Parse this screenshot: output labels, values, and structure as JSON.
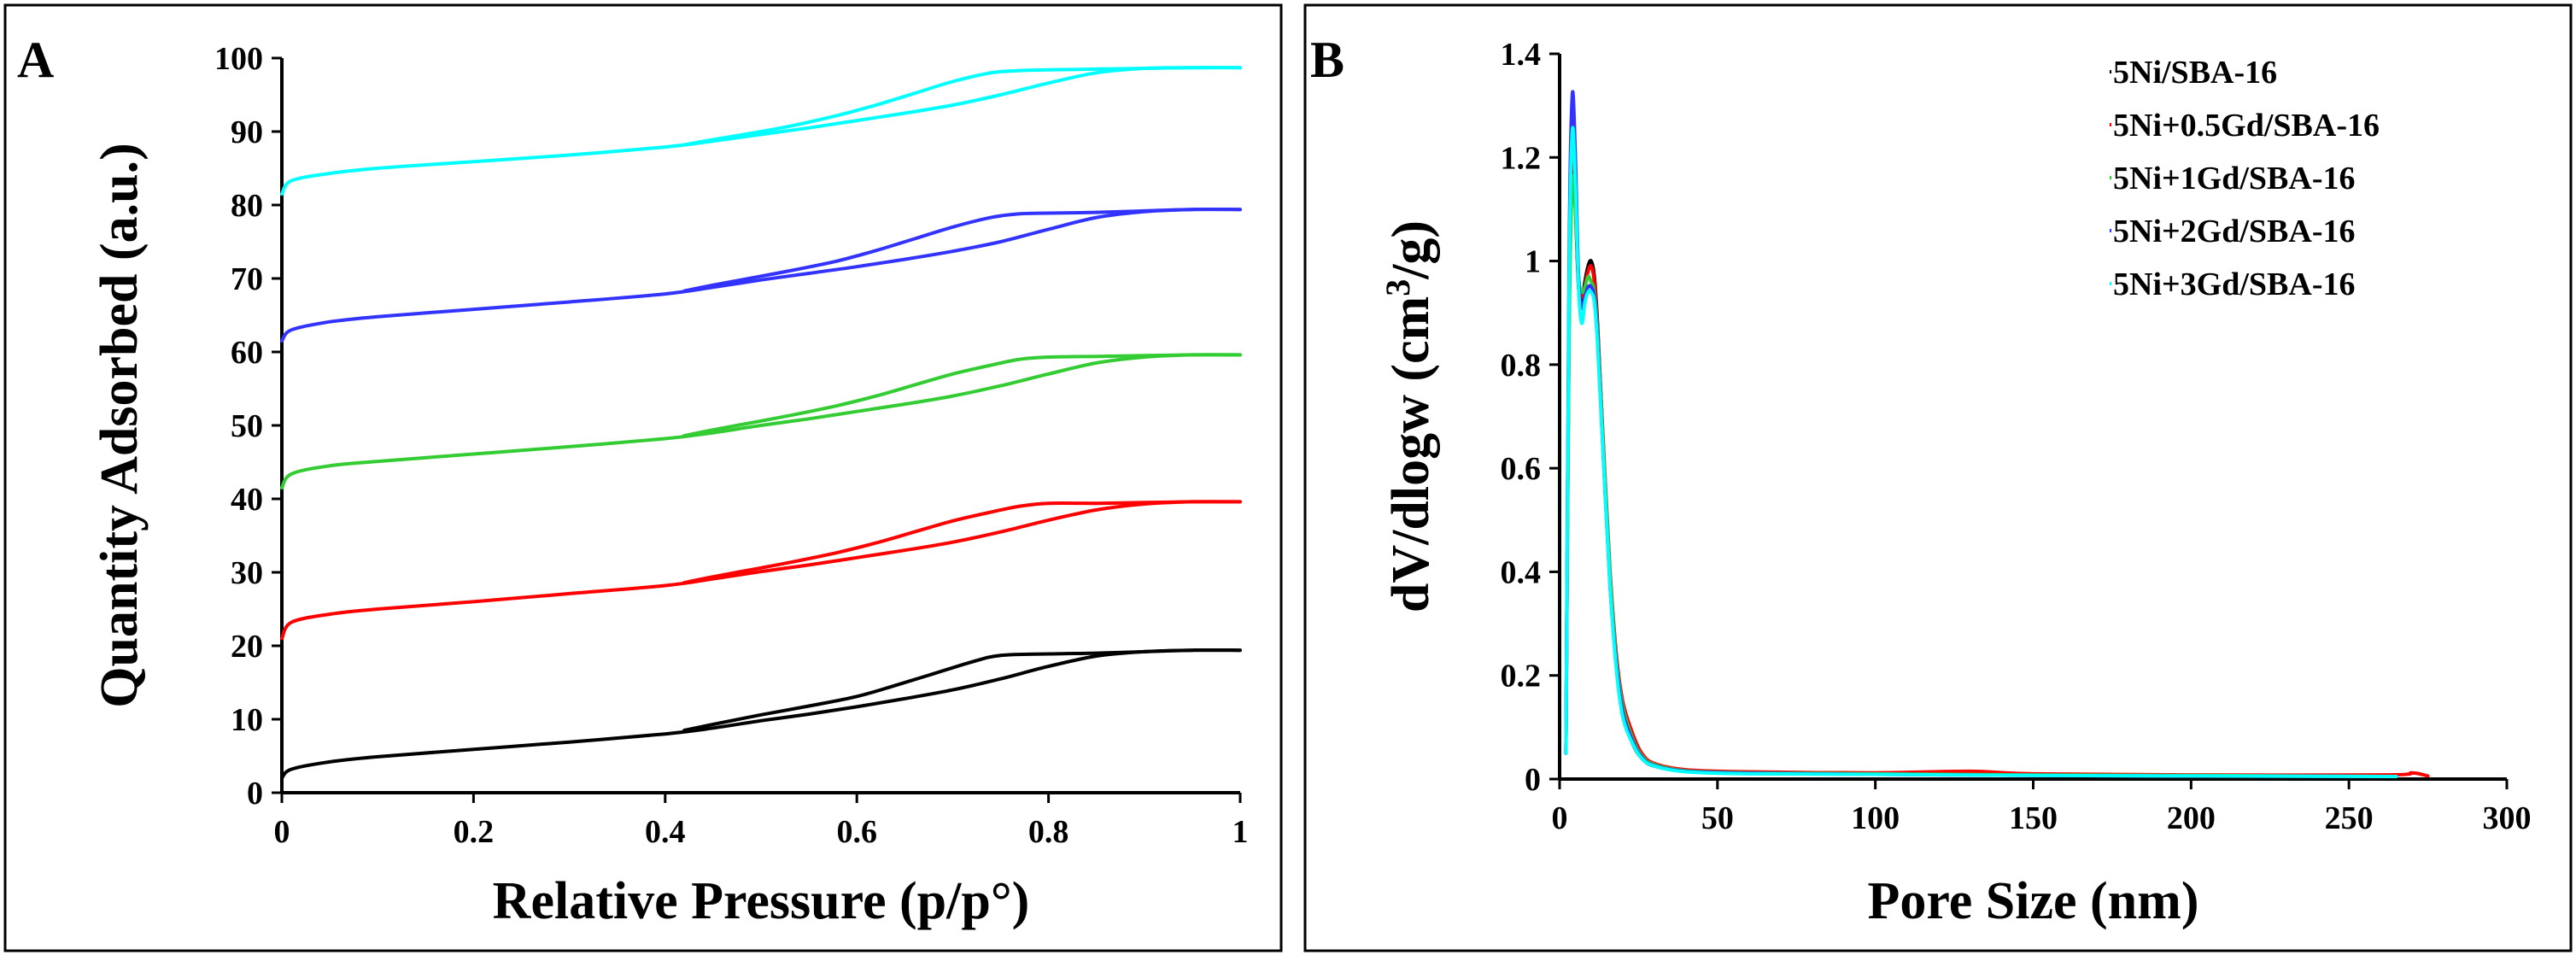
{
  "chart_data": [
    {
      "panel": "A",
      "type": "line",
      "title": "",
      "xlabel": "Relative Pressure (p/p°)",
      "ylabel": "Quantity Adsorbed (a.u.)",
      "xlim": [
        0,
        1
      ],
      "ylim": [
        0,
        100
      ],
      "x_ticks": [
        0,
        0.2,
        0.4,
        0.6,
        0.8,
        1
      ],
      "x_tick_labels": [
        "0",
        "0.2",
        "0.4",
        "0.6",
        "0.8",
        "1"
      ],
      "y_ticks": [
        0,
        10,
        20,
        30,
        40,
        50,
        60,
        70,
        80,
        90,
        100
      ],
      "y_tick_labels": [
        "0",
        "10",
        "20",
        "30",
        "40",
        "50",
        "60",
        "70",
        "80",
        "90",
        "100"
      ],
      "grid": false,
      "legend": "none",
      "series": [
        {
          "name": "5Ni/SBA-16",
          "color": "#000000",
          "adsorption": {
            "x": [
              0,
              0.01,
              0.05,
              0.1,
              0.2,
              0.3,
              0.4,
              0.45,
              0.5,
              0.55,
              0.6,
              0.65,
              0.7,
              0.75,
              0.8,
              0.85,
              0.9,
              0.95,
              1.0
            ],
            "y": [
              2.0,
              3.2,
              4.2,
              4.9,
              5.9,
              6.9,
              8.0,
              8.8,
              9.8,
              10.7,
              11.7,
              12.8,
              14.0,
              15.5,
              17.2,
              18.6,
              19.2,
              19.4,
              19.4
            ]
          },
          "desorption": {
            "x": [
              1.0,
              0.95,
              0.9,
              0.85,
              0.8,
              0.75,
              0.72,
              0.68,
              0.64,
              0.6,
              0.55,
              0.5,
              0.45,
              0.42
            ],
            "y": [
              19.4,
              19.4,
              19.2,
              19.0,
              18.9,
              18.7,
              17.8,
              16.2,
              14.6,
              13.1,
              11.8,
              10.6,
              9.3,
              8.5
            ]
          }
        },
        {
          "name": "5Ni+0.5Gd/SBA-16",
          "color": "#ff0000",
          "adsorption": {
            "x": [
              0,
              0.01,
              0.05,
              0.1,
              0.2,
              0.3,
              0.4,
              0.45,
              0.5,
              0.55,
              0.6,
              0.65,
              0.7,
              0.75,
              0.8,
              0.85,
              0.9,
              0.95,
              1.0
            ],
            "y": [
              21.0,
              23.2,
              24.3,
              25.0,
              26.0,
              27.1,
              28.2,
              29.1,
              30.1,
              31.0,
              32.0,
              33.0,
              34.1,
              35.5,
              37.1,
              38.5,
              39.3,
              39.6,
              39.6
            ]
          },
          "desorption": {
            "x": [
              1.0,
              0.95,
              0.9,
              0.85,
              0.8,
              0.77,
              0.74,
              0.7,
              0.66,
              0.62,
              0.58,
              0.54,
              0.5,
              0.45,
              0.42
            ],
            "y": [
              39.6,
              39.6,
              39.5,
              39.4,
              39.4,
              39.0,
              38.2,
              37.0,
              35.5,
              34.0,
              32.7,
              31.6,
              30.6,
              29.4,
              28.6
            ]
          }
        },
        {
          "name": "5Ni+1Gd/SBA-16",
          "color": "#33cc33",
          "adsorption": {
            "x": [
              0,
              0.01,
              0.05,
              0.1,
              0.2,
              0.3,
              0.4,
              0.45,
              0.5,
              0.55,
              0.6,
              0.65,
              0.7,
              0.75,
              0.8,
              0.85,
              0.9,
              0.95,
              1.0
            ],
            "y": [
              41.5,
              43.4,
              44.5,
              45.1,
              46.1,
              47.1,
              48.2,
              49.0,
              50.0,
              50.9,
              51.9,
              52.9,
              54.0,
              55.4,
              57.0,
              58.5,
              59.3,
              59.6,
              59.6
            ]
          },
          "desorption": {
            "x": [
              1.0,
              0.95,
              0.9,
              0.85,
              0.8,
              0.77,
              0.74,
              0.7,
              0.66,
              0.62,
              0.58,
              0.54,
              0.5,
              0.45,
              0.42
            ],
            "y": [
              59.6,
              59.6,
              59.5,
              59.4,
              59.3,
              59.0,
              58.2,
              57.0,
              55.5,
              54.0,
              52.7,
              51.6,
              50.6,
              49.4,
              48.6
            ]
          }
        },
        {
          "name": "5Ni+2Gd/SBA-16",
          "color": "#3333ff",
          "adsorption": {
            "x": [
              0,
              0.01,
              0.05,
              0.1,
              0.2,
              0.3,
              0.4,
              0.45,
              0.5,
              0.55,
              0.6,
              0.65,
              0.7,
              0.75,
              0.8,
              0.85,
              0.9,
              0.95,
              1.0
            ],
            "y": [
              61.5,
              63.0,
              64.1,
              64.8,
              65.8,
              66.8,
              67.9,
              68.8,
              69.8,
              70.7,
              71.6,
              72.6,
              73.7,
              75.0,
              76.7,
              78.3,
              79.1,
              79.4,
              79.4
            ]
          },
          "desorption": {
            "x": [
              1.0,
              0.95,
              0.9,
              0.85,
              0.8,
              0.77,
              0.74,
              0.7,
              0.66,
              0.62,
              0.58,
              0.54,
              0.5,
              0.45,
              0.42
            ],
            "y": [
              79.4,
              79.4,
              79.2,
              79.0,
              78.9,
              78.8,
              78.3,
              77.0,
              75.4,
              73.8,
              72.4,
              71.3,
              70.3,
              69.1,
              68.3
            ]
          }
        },
        {
          "name": "5Ni+3Gd/SBA-16",
          "color": "#00ffff",
          "adsorption": {
            "x": [
              0,
              0.01,
              0.05,
              0.1,
              0.2,
              0.3,
              0.4,
              0.45,
              0.5,
              0.55,
              0.6,
              0.65,
              0.7,
              0.75,
              0.8,
              0.85,
              0.9,
              0.95,
              1.0
            ],
            "y": [
              81.5,
              83.3,
              84.3,
              85.0,
              85.9,
              86.8,
              87.9,
              88.7,
              89.6,
              90.5,
              91.5,
              92.5,
              93.6,
              95.0,
              96.6,
              98.0,
              98.6,
              98.7,
              98.7
            ]
          },
          "desorption": {
            "x": [
              1.0,
              0.95,
              0.9,
              0.85,
              0.8,
              0.77,
              0.74,
              0.7,
              0.66,
              0.62,
              0.58,
              0.54,
              0.5,
              0.45,
              0.42
            ],
            "y": [
              98.7,
              98.7,
              98.6,
              98.5,
              98.4,
              98.3,
              98.0,
              96.8,
              95.2,
              93.6,
              92.2,
              91.0,
              90.0,
              88.9,
              88.2
            ]
          }
        }
      ]
    },
    {
      "panel": "B",
      "type": "line",
      "title": "",
      "xlabel": "Pore Size (nm)",
      "ylabel_main": "dV/dlogw (cm",
      "ylabel_sup": "3",
      "ylabel_tail": "/g)",
      "xlim": [
        0,
        300
      ],
      "ylim": [
        0,
        1.4
      ],
      "x_ticks": [
        0,
        50,
        100,
        150,
        200,
        250,
        300
      ],
      "x_tick_labels": [
        "0",
        "50",
        "100",
        "150",
        "200",
        "250",
        "300"
      ],
      "y_ticks": [
        0,
        0.2,
        0.4,
        0.6,
        0.8,
        1,
        1.2,
        1.4
      ],
      "y_tick_labels": [
        "0",
        "0.2",
        "0.4",
        "0.6",
        "0.8",
        "1",
        "1.2",
        "1.4"
      ],
      "grid": false,
      "legend": "top-right",
      "series": [
        {
          "name": "5Ni/SBA-16",
          "color": "#000000",
          "x": [
            2,
            3,
            4,
            5,
            6,
            7,
            8,
            9,
            10,
            11,
            12,
            14,
            16,
            18,
            20,
            23,
            26,
            30,
            40,
            60,
            100,
            150,
            200,
            265
          ],
          "y": [
            0.05,
            0.9,
            1.2,
            1.1,
            0.95,
            0.92,
            0.96,
            0.99,
            1.0,
            0.97,
            0.88,
            0.62,
            0.38,
            0.22,
            0.13,
            0.07,
            0.04,
            0.025,
            0.015,
            0.012,
            0.01,
            0.008,
            0.006,
            0.005
          ]
        },
        {
          "name": "5Ni+0.5Gd/SBA-16",
          "color": "#ff0000",
          "x": [
            2,
            3,
            4,
            5,
            6,
            7,
            8,
            9,
            10,
            11,
            12,
            14,
            16,
            18,
            20,
            23,
            26,
            30,
            40,
            60,
            100,
            130,
            150,
            200,
            262,
            270,
            275
          ],
          "y": [
            0.05,
            0.88,
            1.18,
            1.12,
            0.96,
            0.93,
            0.95,
            0.98,
            0.99,
            0.96,
            0.87,
            0.63,
            0.4,
            0.24,
            0.15,
            0.09,
            0.05,
            0.03,
            0.018,
            0.014,
            0.012,
            0.015,
            0.01,
            0.008,
            0.008,
            0.012,
            0.006
          ]
        },
        {
          "name": "5Ni+1Gd/SBA-16",
          "color": "#33cc33",
          "x": [
            2,
            3,
            4,
            5,
            6,
            7,
            8,
            9,
            10,
            11,
            12,
            14,
            16,
            18,
            20,
            23,
            26,
            30,
            40,
            60,
            100,
            150,
            200,
            265
          ],
          "y": [
            0.05,
            0.85,
            1.15,
            1.1,
            0.97,
            0.94,
            0.95,
            0.97,
            0.96,
            0.94,
            0.86,
            0.62,
            0.39,
            0.23,
            0.14,
            0.08,
            0.045,
            0.028,
            0.016,
            0.012,
            0.01,
            0.008,
            0.007,
            0.005
          ]
        },
        {
          "name": "5Ni+2Gd/SBA-16",
          "color": "#3333ff",
          "x": [
            2,
            3,
            4,
            5,
            6,
            7,
            8,
            9,
            10,
            11,
            12,
            14,
            16,
            18,
            20,
            23,
            26,
            30,
            40,
            60,
            100,
            150,
            200,
            265
          ],
          "y": [
            0.05,
            1.0,
            1.32,
            1.2,
            0.97,
            0.91,
            0.93,
            0.95,
            0.95,
            0.93,
            0.85,
            0.6,
            0.37,
            0.22,
            0.13,
            0.075,
            0.042,
            0.026,
            0.015,
            0.011,
            0.009,
            0.007,
            0.006,
            0.005
          ]
        },
        {
          "name": "5Ni+3Gd/SBA-16",
          "color": "#00ffff",
          "x": [
            2,
            3,
            4,
            5,
            6,
            7,
            8,
            9,
            10,
            11,
            12,
            14,
            16,
            18,
            20,
            23,
            26,
            30,
            40,
            60,
            100,
            150,
            200,
            265
          ],
          "y": [
            0.05,
            0.95,
            1.25,
            1.15,
            0.95,
            0.88,
            0.92,
            0.94,
            0.94,
            0.92,
            0.84,
            0.6,
            0.37,
            0.21,
            0.12,
            0.07,
            0.04,
            0.025,
            0.014,
            0.01,
            0.009,
            0.007,
            0.006,
            0.005
          ]
        }
      ]
    }
  ]
}
